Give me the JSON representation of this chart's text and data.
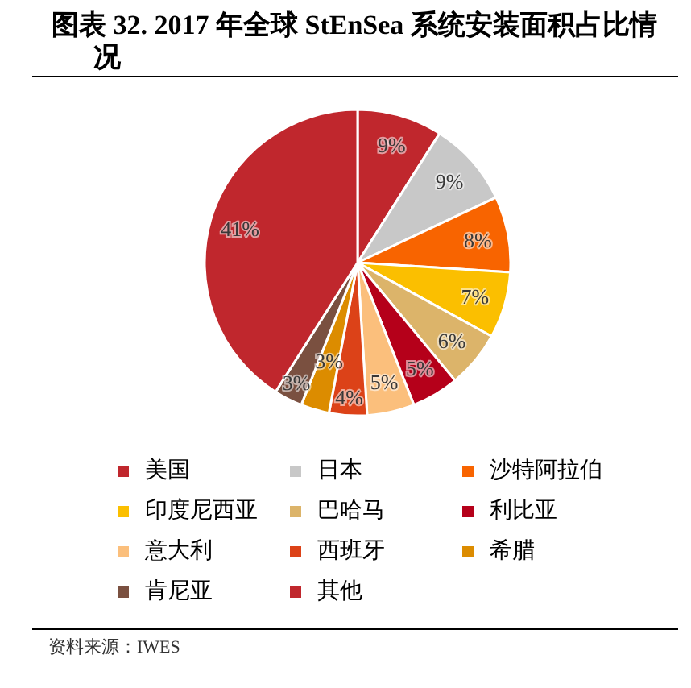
{
  "chart_data": {
    "type": "pie",
    "title": "图表 32. 2017 年全球 StEnSea 系统安装面积占比情况",
    "categories": [
      "美国",
      "日本",
      "沙特阿拉伯",
      "印度尼西亚",
      "巴哈马",
      "利比亚",
      "意大利",
      "西班牙",
      "希腊",
      "肯尼亚",
      "其他"
    ],
    "values": [
      9,
      9,
      8,
      7,
      6,
      5,
      5,
      4,
      3,
      3,
      41
    ],
    "colors": [
      "#c0272d",
      "#c8c8c8",
      "#f86400",
      "#fbbf00",
      "#dcb46a",
      "#b5001a",
      "#fbbf7c",
      "#dc4218",
      "#dc8c00",
      "#7a5040",
      "#c0272d"
    ],
    "value_labels": [
      "9%",
      "9%",
      "8%",
      "7%",
      "6%",
      "5%",
      "5%",
      "4%",
      "3%",
      "3%",
      "41%"
    ],
    "legend": "bottom",
    "annotations": [
      "资料来源：IWES"
    ]
  }
}
